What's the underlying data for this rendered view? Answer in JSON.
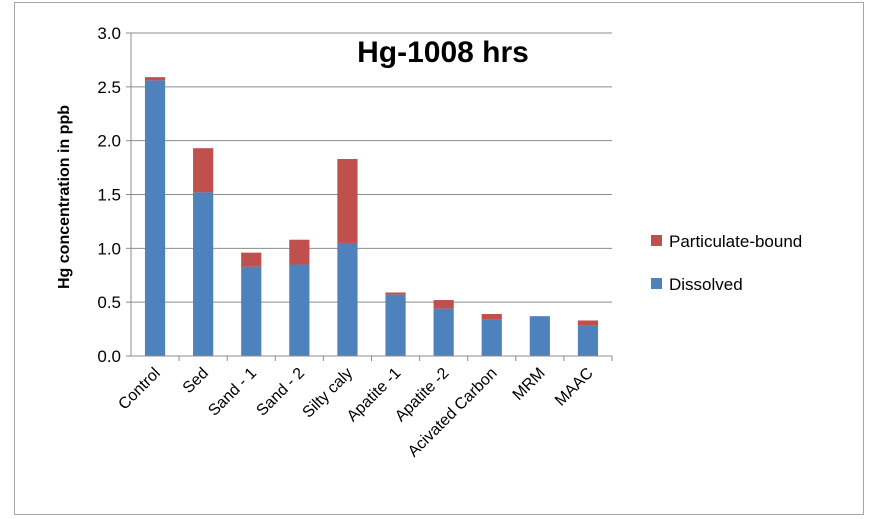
{
  "chart_data": {
    "type": "bar",
    "stacked": true,
    "title": "Hg-1008 hrs",
    "ylabel": "Hg concentration in ppb",
    "xlabel": "",
    "ylim": [
      0,
      3.0
    ],
    "yticks": [
      "0.0",
      "0.5",
      "1.0",
      "1.5",
      "2.0",
      "2.5",
      "3.0"
    ],
    "grid": true,
    "legend_position": "right",
    "categories": [
      "Control",
      "Sed",
      "Sand - 1",
      "Sand - 2",
      "Silty caly",
      "Apatite -1",
      "Apatite -2",
      "Acivated Carbon",
      "MRM",
      "MAAC"
    ],
    "series": [
      {
        "name": "Dissolved",
        "color": "#4f81bd",
        "values": [
          2.56,
          1.52,
          0.83,
          0.85,
          1.05,
          0.57,
          0.44,
          0.34,
          0.37,
          0.28
        ]
      },
      {
        "name": "Particulate-bound",
        "color": "#c0504d",
        "values": [
          0.03,
          0.41,
          0.13,
          0.23,
          0.78,
          0.02,
          0.08,
          0.05,
          0.0,
          0.05
        ]
      }
    ],
    "legend": [
      "Particulate-bound",
      "Dissolved"
    ]
  }
}
